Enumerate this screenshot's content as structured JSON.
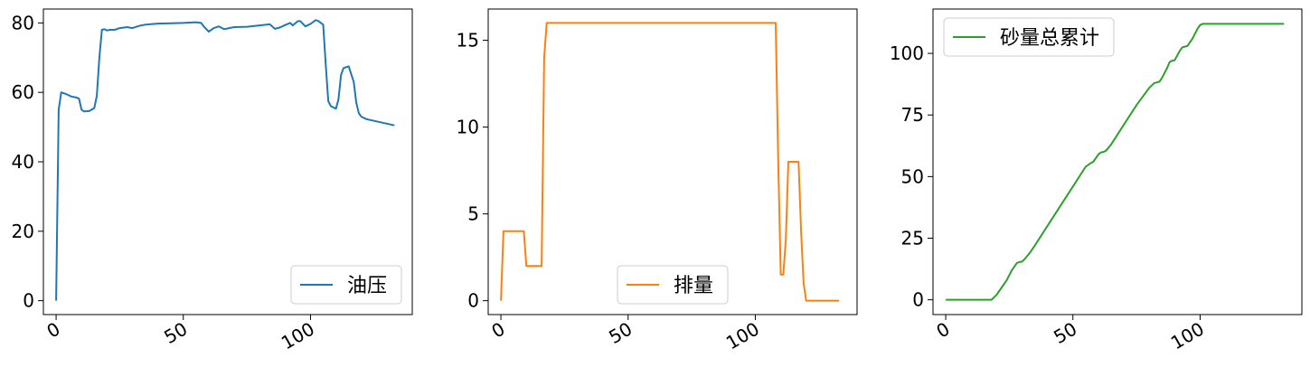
{
  "chart_data": [
    {
      "type": "line",
      "title": "",
      "xlabel": "",
      "ylabel": "",
      "xlim": [
        -5,
        140
      ],
      "ylim": [
        -4,
        84
      ],
      "x_ticks": [
        0,
        50,
        100
      ],
      "y_ticks": [
        0,
        20,
        40,
        60,
        80
      ],
      "x_tick_labels": [
        "0",
        "50",
        "100"
      ],
      "y_tick_labels": [
        "0",
        "20",
        "40",
        "60",
        "80"
      ],
      "legend_position": "lower-right",
      "series": [
        {
          "name": "油压",
          "color": "#1f77b4",
          "x": [
            0,
            1,
            2,
            4,
            6,
            8,
            9,
            10,
            11,
            13,
            15,
            16,
            17,
            18,
            19,
            20,
            21,
            23,
            25,
            28,
            30,
            32,
            33,
            35,
            40,
            45,
            50,
            55,
            57,
            58,
            60,
            62,
            64,
            66,
            70,
            75,
            80,
            84,
            86,
            88,
            90,
            92,
            93,
            95,
            96,
            98,
            100,
            102,
            103,
            105,
            106,
            107,
            108,
            110,
            111,
            112,
            113,
            115,
            117,
            118,
            119,
            120,
            122,
            125,
            130,
            133
          ],
          "y": [
            0,
            55,
            60,
            59.5,
            58.8,
            58.5,
            58.2,
            55,
            54.5,
            54.6,
            55.5,
            59,
            70,
            78,
            78.2,
            77.8,
            78,
            78,
            78.5,
            78.8,
            78.5,
            79,
            79.2,
            79.5,
            79.8,
            79.9,
            80,
            80.2,
            80,
            79,
            77.5,
            78.5,
            79,
            78.2,
            78.8,
            78.9,
            79.3,
            79.6,
            78.3,
            78.7,
            79.4,
            80,
            79.3,
            80.5,
            80.5,
            79,
            79.7,
            80.8,
            80.6,
            79.5,
            68,
            57.5,
            56,
            55.3,
            58,
            65,
            67,
            67.5,
            63,
            57,
            54,
            53,
            52.3,
            51.8,
            51,
            50.5
          ]
        }
      ]
    },
    {
      "type": "line",
      "title": "",
      "xlabel": "",
      "ylabel": "",
      "xlim": [
        -5,
        140
      ],
      "ylim": [
        -0.8,
        16.8
      ],
      "x_ticks": [
        0,
        50,
        100
      ],
      "y_ticks": [
        0,
        5,
        10,
        15
      ],
      "x_tick_labels": [
        "0",
        "50",
        "100"
      ],
      "y_tick_labels": [
        "0",
        "5",
        "10",
        "15"
      ],
      "legend_position": "lower-center",
      "series": [
        {
          "name": "排量",
          "color": "#ff7f0e",
          "x": [
            0,
            1,
            9,
            10,
            15,
            16,
            17,
            18,
            108,
            109,
            110,
            111,
            112,
            113,
            117,
            118,
            119,
            120,
            133
          ],
          "y": [
            0,
            4,
            4,
            2,
            2,
            2,
            14,
            16,
            16,
            8,
            1.5,
            1.5,
            3.5,
            8,
            8,
            4,
            1,
            0,
            0
          ]
        }
      ]
    },
    {
      "type": "line",
      "title": "",
      "xlabel": "",
      "ylabel": "",
      "xlim": [
        -5,
        140
      ],
      "ylim": [
        -6,
        118
      ],
      "x_ticks": [
        0,
        50,
        100
      ],
      "y_ticks": [
        0,
        25,
        50,
        75,
        100
      ],
      "x_tick_labels": [
        "0",
        "50",
        "100"
      ],
      "y_tick_labels": [
        "0",
        "25",
        "50",
        "75",
        "100"
      ],
      "legend_position": "upper-left",
      "series": [
        {
          "name": "砂量总累计",
          "color": "#2ca02c",
          "x": [
            0,
            18,
            20,
            22,
            24,
            26,
            28,
            29,
            30,
            31,
            33,
            35,
            40,
            45,
            50,
            55,
            57,
            58,
            60,
            61,
            62,
            63,
            65,
            70,
            75,
            80,
            82,
            83,
            84,
            85,
            87,
            88,
            89,
            90,
            92,
            93,
            95,
            97,
            99,
            100,
            101,
            102,
            105,
            110,
            120,
            133
          ],
          "y": [
            0,
            0,
            2,
            5,
            8,
            12,
            15,
            15.3,
            15.5,
            16.5,
            19,
            22,
            30,
            38,
            46,
            54,
            55.5,
            56,
            59,
            59.8,
            60,
            60.5,
            63,
            71,
            79,
            86,
            88,
            88.2,
            88.5,
            90,
            94,
            96.5,
            97,
            97.2,
            101,
            102.5,
            103,
            106,
            110,
            111.5,
            112,
            112,
            112,
            112,
            112,
            112
          ]
        }
      ]
    }
  ]
}
